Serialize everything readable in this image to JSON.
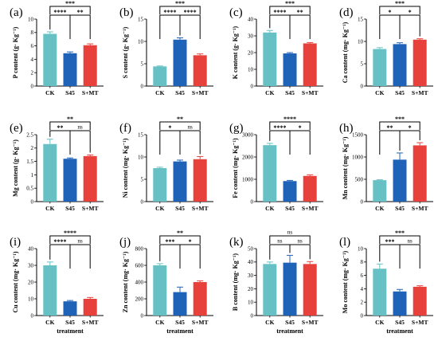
{
  "colors": {
    "CK": "#67c1c4",
    "S45": "#1f63b8",
    "S+MT": "#e8403a"
  },
  "chart_data": [
    {
      "id": "a",
      "label": "(a)",
      "type": "bar",
      "ylabel": "P content  (g· Kg⁻¹)",
      "xlabel": "",
      "categories": [
        "CK",
        "S45",
        "S+MT"
      ],
      "values": [
        7.8,
        4.9,
        6.1
      ],
      "errors": [
        0.3,
        0.2,
        0.2
      ],
      "ylim": [
        0,
        10
      ],
      "yticks": [
        0,
        2,
        4,
        6,
        8,
        10
      ],
      "sig": [
        {
          "from": 0,
          "to": 2,
          "text": "***"
        },
        {
          "from": 0,
          "to": 1,
          "text": "****"
        },
        {
          "from": 1,
          "to": 2,
          "text": "**"
        }
      ]
    },
    {
      "id": "b",
      "label": "(b)",
      "type": "bar",
      "ylabel": "S content  (g· Kg⁻¹)",
      "xlabel": "",
      "categories": [
        "CK",
        "S45",
        "S+MT"
      ],
      "values": [
        4.4,
        10.4,
        6.9
      ],
      "errors": [
        0.1,
        0.4,
        0.3
      ],
      "ylim": [
        0,
        15
      ],
      "yticks": [
        0,
        5,
        10,
        15
      ],
      "sig": [
        {
          "from": 0,
          "to": 2,
          "text": "***"
        },
        {
          "from": 1,
          "to": 2,
          "text": "****"
        },
        {
          "from": 0,
          "to": 1,
          "text": "****"
        }
      ]
    },
    {
      "id": "c",
      "label": "(c)",
      "type": "bar",
      "ylabel": "K content  (g· Kg⁻¹)",
      "xlabel": "",
      "categories": [
        "CK",
        "S45",
        "S+MT"
      ],
      "values": [
        32.0,
        19.5,
        25.5
      ],
      "errors": [
        1.2,
        0.5,
        0.5
      ],
      "ylim": [
        0,
        40
      ],
      "yticks": [
        0,
        10,
        20,
        30,
        40
      ],
      "sig": [
        {
          "from": 0,
          "to": 2,
          "text": "***"
        },
        {
          "from": 0,
          "to": 1,
          "text": "****"
        },
        {
          "from": 1,
          "to": 2,
          "text": "**"
        }
      ]
    },
    {
      "id": "d",
      "label": "(d)",
      "type": "bar",
      "ylabel": "Ca content  (mg· Kg⁻¹)",
      "xlabel": "",
      "categories": [
        "CK",
        "S45",
        "S+MT"
      ],
      "values": [
        8.3,
        9.4,
        10.4
      ],
      "errors": [
        0.3,
        0.3,
        0.2
      ],
      "ylim": [
        0,
        15
      ],
      "yticks": [
        0,
        5,
        10,
        15
      ],
      "sig": [
        {
          "from": 0,
          "to": 2,
          "text": "***"
        },
        {
          "from": 0,
          "to": 1,
          "text": "*"
        },
        {
          "from": 1,
          "to": 2,
          "text": "*"
        }
      ]
    },
    {
      "id": "e",
      "label": "(e)",
      "type": "bar",
      "ylabel": "Mg content  (g· Kg⁻¹)",
      "xlabel": "",
      "categories": [
        "CK",
        "S45",
        "S+MT"
      ],
      "values": [
        2.15,
        1.6,
        1.7
      ],
      "errors": [
        0.18,
        0.03,
        0.04
      ],
      "ylim": [
        0,
        2.5
      ],
      "yticks": [
        0.0,
        0.5,
        1.0,
        1.5,
        2.0,
        2.5
      ],
      "sig": [
        {
          "from": 0,
          "to": 2,
          "text": "**"
        },
        {
          "from": 0,
          "to": 1,
          "text": "**"
        },
        {
          "from": 1,
          "to": 2,
          "text": "ns"
        }
      ]
    },
    {
      "id": "f",
      "label": "(f)",
      "type": "bar",
      "ylabel": "Ni content  (mg· Kg⁻¹)",
      "xlabel": "",
      "categories": [
        "CK",
        "S45",
        "S+MT"
      ],
      "values": [
        7.5,
        9.0,
        9.5
      ],
      "errors": [
        0.2,
        0.3,
        0.6
      ],
      "ylim": [
        0,
        15
      ],
      "yticks": [
        0,
        5,
        10,
        15
      ],
      "sig": [
        {
          "from": 0,
          "to": 2,
          "text": "**"
        },
        {
          "from": 0,
          "to": 1,
          "text": "*"
        },
        {
          "from": 1,
          "to": 2,
          "text": "ns"
        }
      ]
    },
    {
      "id": "g",
      "label": "(g)",
      "type": "bar",
      "ylabel": "Fe content  (mg· Kg⁻¹)",
      "xlabel": "",
      "categories": [
        "CK",
        "S45",
        "S+MT"
      ],
      "values": [
        2530,
        920,
        1150
      ],
      "errors": [
        80,
        30,
        50
      ],
      "ylim": [
        0,
        3000
      ],
      "yticks": [
        0,
        1000,
        2000,
        3000
      ],
      "sig": [
        {
          "from": 0,
          "to": 2,
          "text": "****"
        },
        {
          "from": 0,
          "to": 1,
          "text": "****"
        },
        {
          "from": 1,
          "to": 2,
          "text": "*"
        }
      ]
    },
    {
      "id": "h",
      "label": "(h)",
      "type": "bar",
      "ylabel": "Mn content  (mg· Kg⁻¹)",
      "xlabel": "",
      "categories": [
        "CK",
        "S45",
        "S+MT"
      ],
      "values": [
        480,
        940,
        1260
      ],
      "errors": [
        10,
        150,
        60
      ],
      "ylim": [
        0,
        1500
      ],
      "yticks": [
        0,
        500,
        1000,
        1500
      ],
      "sig": [
        {
          "from": 0,
          "to": 2,
          "text": "***"
        },
        {
          "from": 0,
          "to": 1,
          "text": "**"
        },
        {
          "from": 1,
          "to": 2,
          "text": "*"
        }
      ]
    },
    {
      "id": "i",
      "label": "(i)",
      "type": "bar",
      "ylabel": "Cu content  (mg· Kg⁻¹)",
      "xlabel": "treatment",
      "categories": [
        "CK",
        "S45",
        "S+MT"
      ],
      "values": [
        30,
        8.5,
        10
      ],
      "errors": [
        2,
        0.5,
        0.8
      ],
      "ylim": [
        0,
        40
      ],
      "yticks": [
        0,
        10,
        20,
        30,
        40
      ],
      "sig": [
        {
          "from": 0,
          "to": 2,
          "text": "****"
        },
        {
          "from": 0,
          "to": 1,
          "text": "****"
        },
        {
          "from": 1,
          "to": 2,
          "text": "ns"
        }
      ]
    },
    {
      "id": "j",
      "label": "(j)",
      "type": "bar",
      "ylabel": "Zn content  (mg· Kg⁻¹)",
      "xlabel": "treatment",
      "categories": [
        "CK",
        "S45",
        "S+MT"
      ],
      "values": [
        600,
        280,
        400
      ],
      "errors": [
        20,
        60,
        15
      ],
      "ylim": [
        0,
        800
      ],
      "yticks": [
        0,
        200,
        400,
        600,
        800
      ],
      "sig": [
        {
          "from": 0,
          "to": 2,
          "text": "**"
        },
        {
          "from": 0,
          "to": 1,
          "text": "***"
        },
        {
          "from": 1,
          "to": 2,
          "text": "*"
        }
      ]
    },
    {
      "id": "k",
      "label": "(k)",
      "type": "bar",
      "ylabel": "B content  (mg· Kg⁻¹)",
      "xlabel": "treatment",
      "categories": [
        "CK",
        "S45",
        "S+MT"
      ],
      "values": [
        38.5,
        39.5,
        38.5
      ],
      "errors": [
        1.5,
        5.5,
        1.8
      ],
      "ylim": [
        0,
        50
      ],
      "yticks": [
        0,
        10,
        20,
        30,
        40,
        50
      ],
      "sig": [
        {
          "from": 0,
          "to": 2,
          "text": "ns"
        },
        {
          "from": 0,
          "to": 1,
          "text": "ns"
        },
        {
          "from": 1,
          "to": 2,
          "text": "ns"
        }
      ]
    },
    {
      "id": "l",
      "label": "(l)",
      "type": "bar",
      "ylabel": "Mo content  (mg· Kg⁻¹)",
      "xlabel": "treatment",
      "categories": [
        "CK",
        "S45",
        "S+MT"
      ],
      "values": [
        7.0,
        3.6,
        4.3
      ],
      "errors": [
        0.7,
        0.3,
        0.15
      ],
      "ylim": [
        0,
        10
      ],
      "yticks": [
        0,
        2,
        4,
        6,
        8,
        10
      ],
      "sig": [
        {
          "from": 0,
          "to": 2,
          "text": "***"
        },
        {
          "from": 0,
          "to": 1,
          "text": "***"
        },
        {
          "from": 1,
          "to": 2,
          "text": "ns"
        }
      ]
    }
  ]
}
